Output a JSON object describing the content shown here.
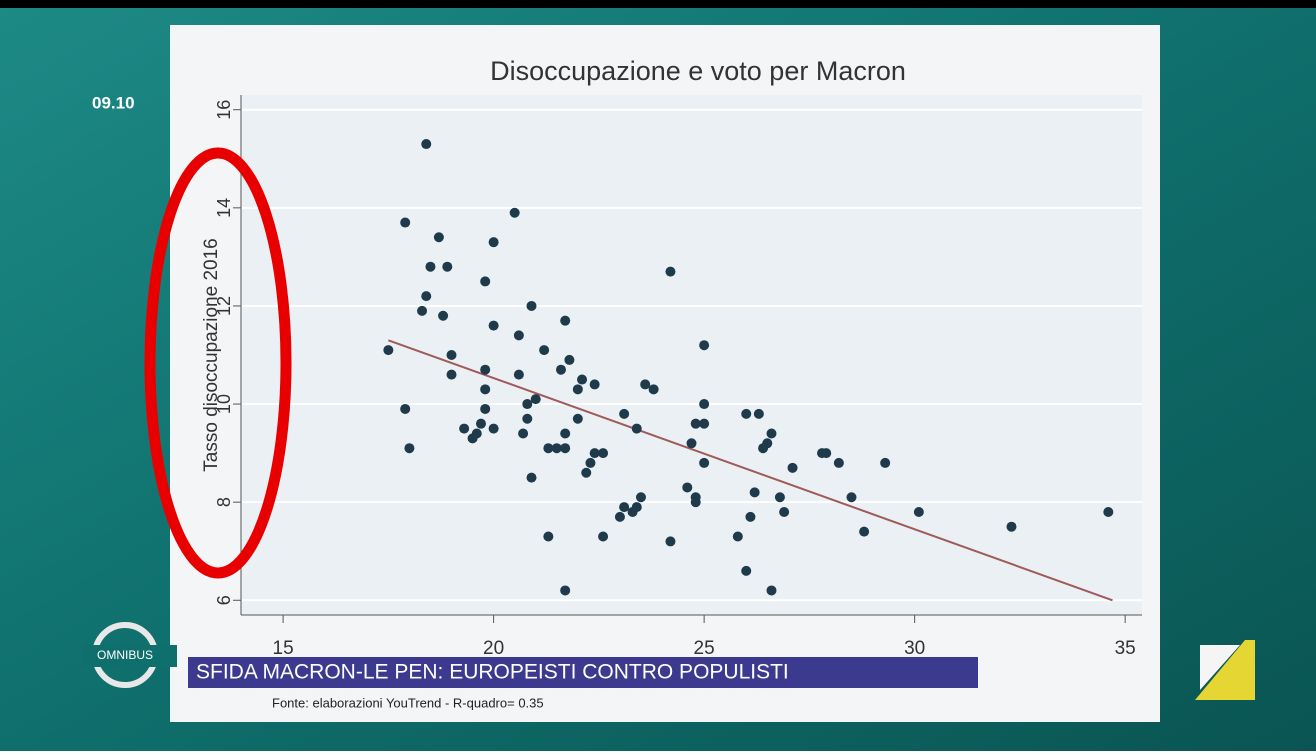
{
  "chart_data": {
    "type": "scatter",
    "title": "Disoccupazione e voto per Macron",
    "y_label": "Tasso disoccupazione 2016",
    "note": "Fonte: elaborazioni YouTrend - R-quadro= 0.35",
    "xlim": [
      14,
      35.4
    ],
    "ylim": [
      5.7,
      16.3
    ],
    "xticks": [
      15,
      20,
      25,
      30,
      35
    ],
    "yticks": [
      6,
      8,
      10,
      12,
      14,
      16
    ],
    "grid": true,
    "points": {
      "color": "#1f3a4a",
      "x": [
        17.5,
        18.4,
        17.9,
        17.9,
        18.0,
        18.7,
        18.5,
        18.4,
        18.3,
        18.9,
        18.8,
        19.0,
        19.0,
        20.5,
        20.0,
        19.8,
        20.0,
        19.8,
        19.8,
        19.8,
        19.3,
        19.6,
        19.5,
        19.7,
        20.0,
        20.9,
        20.6,
        20.6,
        20.8,
        20.8,
        20.7,
        21.0,
        20.9,
        21.2,
        21.7,
        21.6,
        21.8,
        22.0,
        22.1,
        22.4,
        22.0,
        21.7,
        21.3,
        21.5,
        21.7,
        22.4,
        22.6,
        22.3,
        22.2,
        21.3,
        21.7,
        22.6,
        24.2,
        23.6,
        23.8,
        23.1,
        23.4,
        25.0,
        25.0,
        24.8,
        25.0,
        24.7,
        25.0,
        24.6,
        24.8,
        24.8,
        23.5,
        23.4,
        23.1,
        23.0,
        23.3,
        24.2,
        26.0,
        26.3,
        26.6,
        26.5,
        26.4,
        26.2,
        26.1,
        25.8,
        26.0,
        26.6,
        26.8,
        26.9,
        27.1,
        27.8,
        27.9,
        28.2,
        28.5,
        28.8,
        29.3,
        30.1,
        32.3,
        34.6
      ],
      "y": [
        11.1,
        15.3,
        13.7,
        9.9,
        9.1,
        13.4,
        12.8,
        12.2,
        11.9,
        12.8,
        11.8,
        11.0,
        10.6,
        13.9,
        13.3,
        12.5,
        11.6,
        10.7,
        10.3,
        9.9,
        9.5,
        9.4,
        9.3,
        9.6,
        9.5,
        12.0,
        11.4,
        10.6,
        10.0,
        9.7,
        9.4,
        10.1,
        8.5,
        11.1,
        11.7,
        10.7,
        10.9,
        10.3,
        10.5,
        10.4,
        9.7,
        9.4,
        9.1,
        9.1,
        9.1,
        9.0,
        9.0,
        8.8,
        8.6,
        7.3,
        6.2,
        7.3,
        12.7,
        10.4,
        10.3,
        9.8,
        9.5,
        11.2,
        10.0,
        9.6,
        9.6,
        9.2,
        8.8,
        8.3,
        8.1,
        8.0,
        8.1,
        7.9,
        7.9,
        7.7,
        7.8,
        7.2,
        9.8,
        9.8,
        9.4,
        9.2,
        9.1,
        8.2,
        7.7,
        7.3,
        6.6,
        6.2,
        8.1,
        7.8,
        8.7,
        9.0,
        9.0,
        8.8,
        8.1,
        7.4,
        8.8,
        7.8,
        7.5,
        7.8
      ]
    },
    "fit_line": {
      "color": "#a05a5a",
      "x": [
        17.5,
        34.7
      ],
      "y": [
        11.3,
        6.0
      ]
    }
  },
  "overlay": {
    "time": "09.10",
    "logo": "OMNIBUS",
    "banner": "SFIDA MACRON-LE PEN: EUROPEISTI CONTRO POPULISTI"
  }
}
